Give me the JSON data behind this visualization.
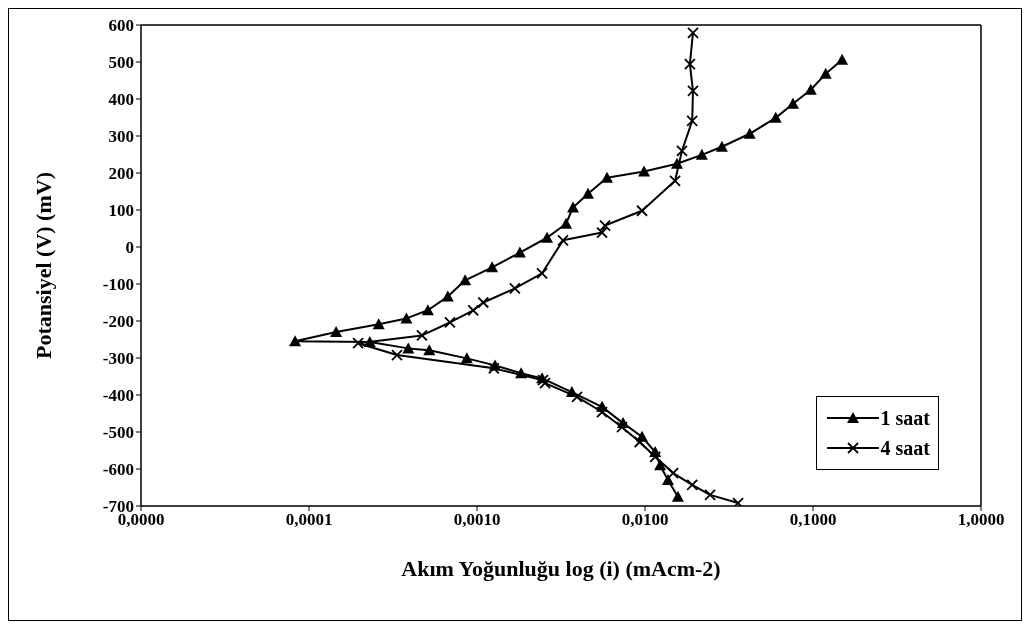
{
  "chart_data": {
    "type": "line",
    "xlabel": "Akım Yoğunluğu log (i) (mAcm-2)",
    "ylabel": "Potansiyel (V) (mV)",
    "log": "x",
    "xlim": [
      1e-05,
      1
    ],
    "xticks": [
      {
        "value": 1e-05,
        "label": "0,0000"
      },
      {
        "value": 0.0001,
        "label": "0,0001"
      },
      {
        "value": 0.001,
        "label": "0,0010"
      },
      {
        "value": 0.01,
        "label": "0,0100"
      },
      {
        "value": 0.1,
        "label": "0,1000"
      },
      {
        "value": 1,
        "label": "1,0000"
      }
    ],
    "ylim": [
      -700,
      600
    ],
    "yticks": [
      -700,
      -600,
      -500,
      -400,
      -300,
      -200,
      -100,
      0,
      100,
      200,
      300,
      400,
      500,
      600
    ],
    "grid": false,
    "legend": "bottom right",
    "line_style": "solid",
    "series": [
      {
        "name": "1 saat",
        "color": "#000000",
        "marker": "triangle",
        "x": [
          0.149,
          0.119,
          0.097,
          0.076,
          0.06,
          0.042,
          0.0287,
          0.0218,
          0.0155,
          0.00987,
          0.00594,
          0.00458,
          0.00373,
          0.00339,
          0.00261,
          0.0018,
          0.00123,
          0.00085,
          0.00067,
          0.00051,
          0.00038,
          0.00026,
          0.000145,
          8.26e-05,
          0.00023,
          0.00039,
          0.00052,
          0.00087,
          0.00128,
          0.00183,
          0.00244,
          0.00367,
          0.00555,
          0.0074,
          0.0096,
          0.0115,
          0.0123,
          0.0137,
          0.0157
        ],
        "values": [
          506,
          468,
          425,
          387,
          349,
          306,
          271,
          249,
          225,
          204,
          187,
          144,
          107,
          63,
          25,
          -15,
          -55,
          -90,
          -134,
          -171,
          -193,
          -209,
          -230,
          -255,
          -257,
          -274,
          -279,
          -301,
          -320,
          -341,
          -355,
          -392,
          -432,
          -476,
          -513,
          -554,
          -590,
          -630,
          -675
        ]
      },
      {
        "name": "4 saat",
        "color": "#000000",
        "marker": "cross",
        "x": [
          0.0193,
          0.0185,
          0.0193,
          0.0191,
          0.0166,
          0.0151,
          0.0096,
          0.00578,
          0.00555,
          0.00325,
          0.00244,
          0.00168,
          0.00109,
          0.00095,
          0.00069,
          0.00047,
          0.000196,
          0.000334,
          0.00126,
          0.00247,
          0.00254,
          0.00394,
          0.00555,
          0.0073,
          0.0093,
          0.0115,
          0.0147,
          0.0191,
          0.0244,
          0.0358
        ],
        "values": [
          579,
          494,
          422,
          341,
          260,
          179,
          98,
          58,
          39,
          18,
          -71,
          -112,
          -150,
          -171,
          -204,
          -239,
          -260,
          -292,
          -328,
          -360,
          -368,
          -405,
          -446,
          -487,
          -527,
          -567,
          -611,
          -643,
          -670,
          -692
        ]
      }
    ]
  }
}
